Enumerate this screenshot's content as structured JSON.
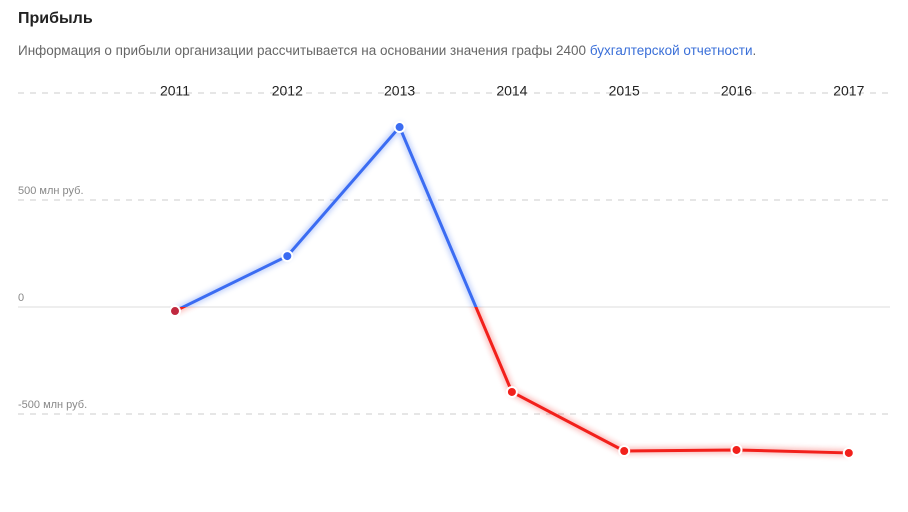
{
  "chart_data": {
    "type": "line",
    "title": "Прибыль",
    "subtitle": "Информация о прибыли организации рассчитывается на основании значения графы 2400",
    "subtitle_link": "бухгалтерской отчетности",
    "subtitle_end": ".",
    "categories": [
      "2011",
      "2012",
      "2013",
      "2014",
      "2015",
      "2016",
      "2017"
    ],
    "values": [
      -19,
      238,
      841,
      -397,
      -673,
      -668,
      -682
    ],
    "positive_color": "#3b6cf2",
    "negative_color": "#f2201b",
    "ylim": [
      -958,
      1000
    ],
    "yticks": [
      {
        "value": 500,
        "label": "500 млн руб."
      },
      0,
      {
        "value": -500,
        "label": "-500 млн руб."
      },
      1000
    ],
    "grid": true
  }
}
